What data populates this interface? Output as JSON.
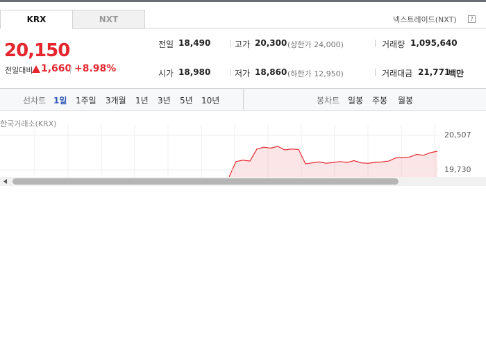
{
  "tabs": [
    "KRX",
    "NXT"
  ],
  "market_link": "넥스트레이드(NXT)",
  "help_icon": "?",
  "price": {
    "current": "20,150",
    "change_label": "전일대비",
    "change": "1,660",
    "change_rate": "+8.98%"
  },
  "stats": [
    {
      "label": "전일",
      "value": "18,490"
    },
    {
      "label": "고가",
      "value": "20,300",
      "note": "(상한가 24,000)"
    },
    {
      "label": "거래량",
      "value": "1,095,640"
    },
    {
      "label": "시가",
      "value": "18,980"
    },
    {
      "label": "저가",
      "value": "18,860",
      "note": "(하한가 12,950)"
    },
    {
      "label": "거래대금",
      "value": "21,771",
      "unit": "백만"
    }
  ],
  "toolbar": {
    "line_chart": "선차트",
    "periods": [
      "1일",
      "1주일",
      "3개월",
      "1년",
      "3년",
      "5년",
      "10년"
    ],
    "candle_chart": "봉차트",
    "candle_periods": [
      "일봉",
      "주봉",
      "월봉"
    ]
  },
  "chart_data": {
    "type": "line",
    "source": "한국거래소(KRX)",
    "color": "#e5262f",
    "values": [
      null,
      null,
      null,
      null,
      null,
      null,
      null,
      null,
      null,
      null,
      null,
      null,
      null,
      null,
      null,
      null,
      null,
      null,
      null,
      null,
      null,
      null,
      null,
      null,
      null,
      null,
      null,
      null,
      null,
      null,
      null,
      null,
      null,
      19580,
      19920,
      19950,
      19930,
      20200,
      20240,
      20220,
      20260,
      20180,
      20200,
      20190,
      19870,
      19890,
      19910,
      19880,
      19900,
      19920,
      19900,
      19940,
      19890,
      19880,
      19900,
      19910,
      19930,
      20000,
      20010,
      20020,
      20080,
      20060,
      20120,
      20150
    ],
    "ylim": [
      19730,
      20507
    ],
    "yticks": [
      {
        "value": 20507,
        "label": "20,507"
      },
      {
        "value": 19730,
        "label": "19,730"
      }
    ]
  }
}
